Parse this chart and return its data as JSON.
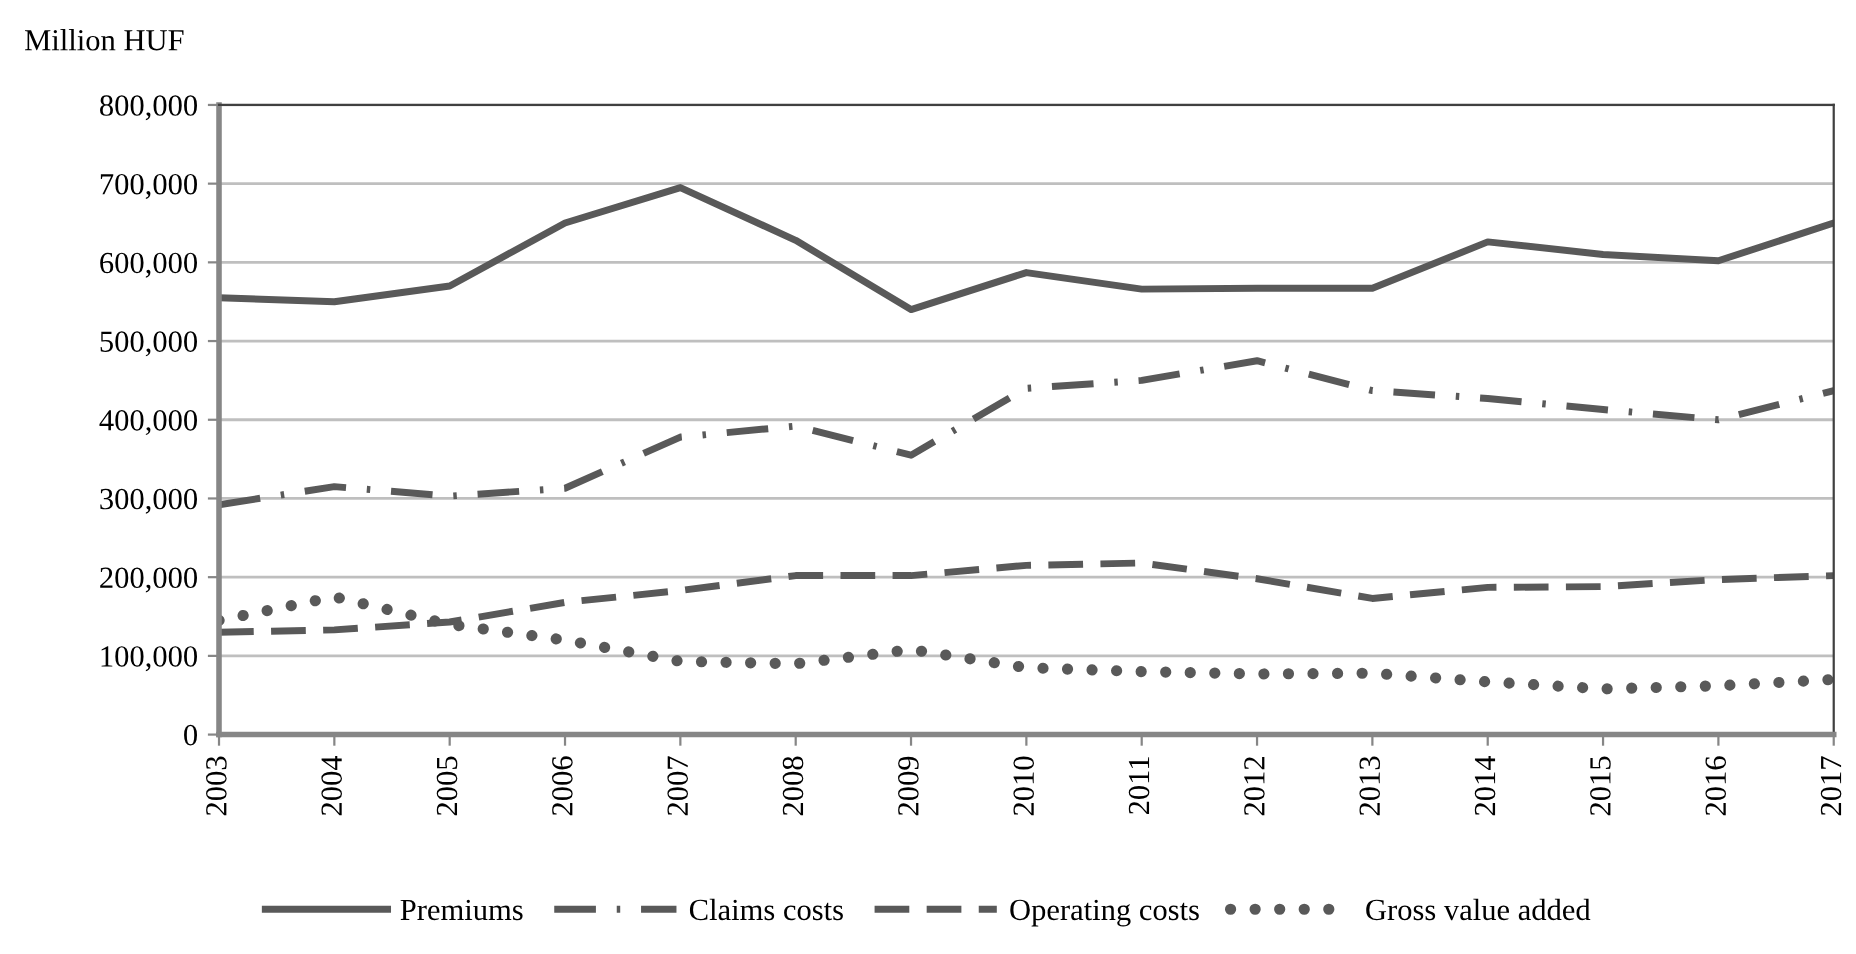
{
  "chart_data": {
    "type": "line",
    "ylabel": "Million HUF",
    "categories": [
      "2003",
      "2004",
      "2005",
      "2006",
      "2007",
      "2008",
      "2009",
      "2010",
      "2011",
      "2012",
      "2013",
      "2014",
      "2015",
      "2016",
      "2017"
    ],
    "series": [
      {
        "name": "Premiums",
        "color": "#595959",
        "line_style": "solid",
        "values": [
          555000,
          550000,
          570000,
          650000,
          695000,
          628000,
          540000,
          587000,
          566000,
          567000,
          567000,
          626000,
          610000,
          602000,
          650000
        ]
      },
      {
        "name": "Claims costs",
        "color": "#595959",
        "line_style": "dashdot",
        "values": [
          292000,
          315000,
          303000,
          313000,
          378000,
          392000,
          355000,
          440000,
          450000,
          475000,
          437000,
          427000,
          413000,
          400000,
          437000
        ]
      },
      {
        "name": "Operating costs",
        "color": "#595959",
        "line_style": "dashed",
        "values": [
          130000,
          133000,
          143000,
          168000,
          183000,
          202000,
          202000,
          215000,
          218000,
          198000,
          173000,
          187000,
          188000,
          197000,
          202000
        ]
      },
      {
        "name": "Gross value added",
        "color": "#595959",
        "line_style": "dotted",
        "values": [
          145000,
          175000,
          140000,
          120000,
          93000,
          90000,
          108000,
          85000,
          80000,
          77000,
          78000,
          67000,
          58000,
          62000,
          70000
        ]
      }
    ],
    "ylim": [
      0,
      800000
    ],
    "yticks": [
      {
        "value": 0,
        "label": "0"
      },
      {
        "value": 100000,
        "label": "100,000"
      },
      {
        "value": 200000,
        "label": "200,000"
      },
      {
        "value": 300000,
        "label": "300,000"
      },
      {
        "value": 400000,
        "label": "400,000"
      },
      {
        "value": 500000,
        "label": "500,000"
      },
      {
        "value": 600000,
        "label": "600,000"
      },
      {
        "value": 700000,
        "label": "700,000"
      },
      {
        "value": 800000,
        "label": "800,000"
      }
    ],
    "grid": "y",
    "legend": "bottom",
    "marker": "none"
  }
}
